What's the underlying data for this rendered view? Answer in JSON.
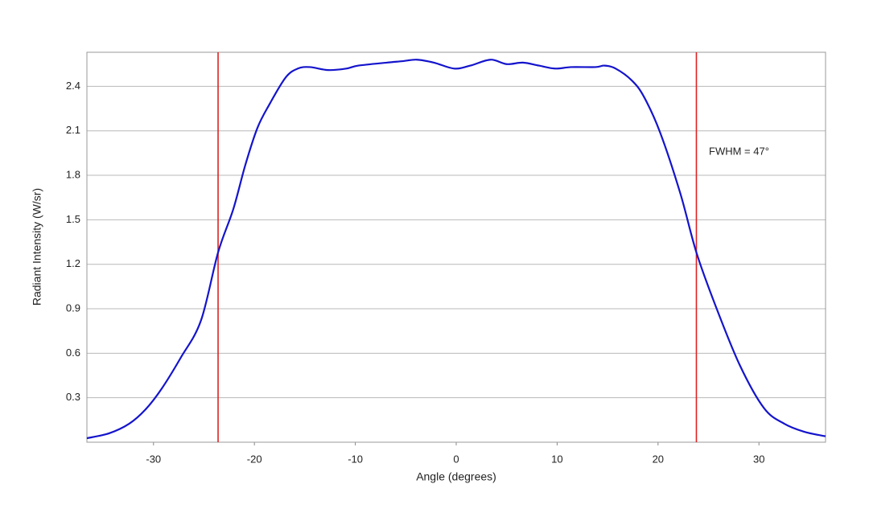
{
  "chart_data": {
    "type": "line",
    "xlabel": "Angle (degrees)",
    "ylabel": "Radiant Intensity (W/sr)",
    "annotation": "FWHM = 47°",
    "x": [
      -36.6,
      -34.4,
      -32.4,
      -30.8,
      -29.2,
      -27.3,
      -25.3,
      -23.6,
      -22.1,
      -20.9,
      -19.7,
      -18.5,
      -16.9,
      -15.7,
      -14.5,
      -12.7,
      -10.9,
      -9.7,
      -6.9,
      -5.3,
      -3.9,
      -2.2,
      -0.2,
      1.4,
      3.4,
      5.0,
      6.6,
      8.2,
      9.8,
      11.4,
      13.8,
      14.7,
      15.8,
      17.4,
      18.6,
      20.2,
      22.2,
      23.8,
      25.7,
      28.1,
      30.5,
      32.5,
      34.5,
      36.6
    ],
    "series": [
      {
        "name": "Radiant Intensity",
        "color": "#1414cc",
        "values": [
          0.027,
          0.06,
          0.125,
          0.22,
          0.36,
          0.57,
          0.82,
          1.28,
          1.57,
          1.87,
          2.12,
          2.28,
          2.46,
          2.52,
          2.53,
          2.51,
          2.52,
          2.54,
          2.56,
          2.57,
          2.58,
          2.56,
          2.52,
          2.54,
          2.58,
          2.55,
          2.56,
          2.54,
          2.52,
          2.53,
          2.53,
          2.54,
          2.52,
          2.44,
          2.33,
          2.09,
          1.68,
          1.28,
          0.92,
          0.52,
          0.23,
          0.125,
          0.07,
          0.04
        ]
      }
    ],
    "vlines": [
      {
        "value": -23.6,
        "color": "#dd2222"
      },
      {
        "value": 23.8,
        "color": "#dd2222"
      }
    ],
    "xlim": [
      -36.6,
      36.6
    ],
    "xticks": [
      -30,
      -20,
      -10,
      0,
      10,
      20,
      30
    ],
    "ylim": [
      0,
      2.63
    ],
    "yticks": [
      0.3,
      0.6,
      0.9,
      1.2,
      1.5,
      1.8,
      2.1,
      2.4
    ],
    "grid": true
  }
}
